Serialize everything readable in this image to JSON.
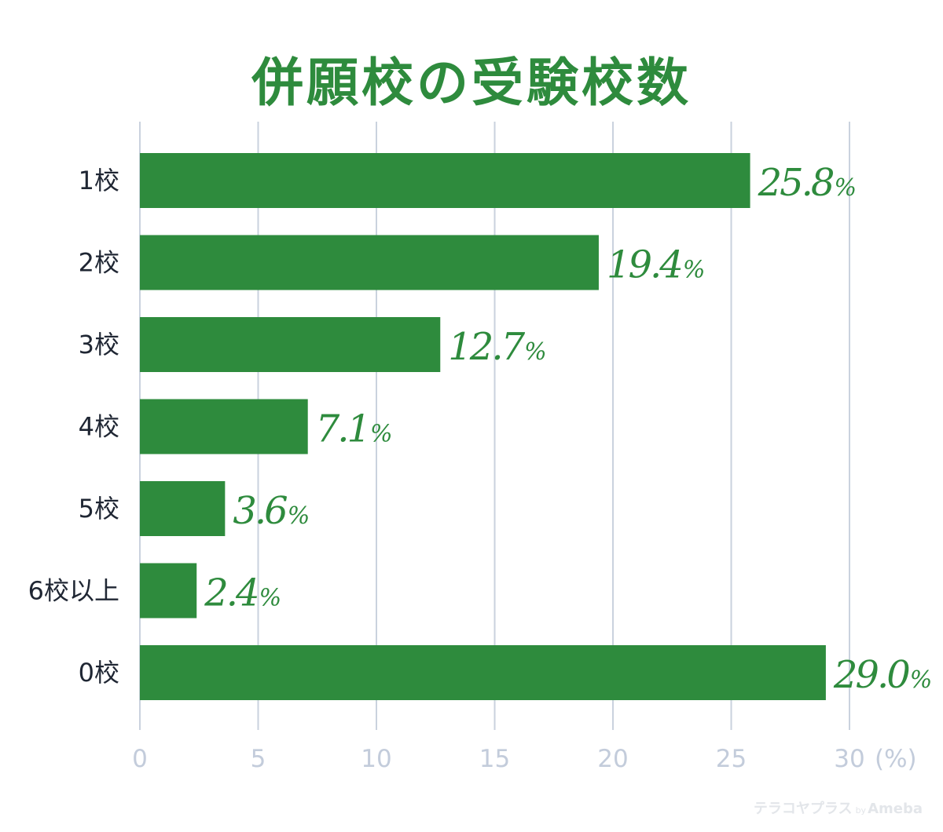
{
  "colors": {
    "title": "#2e8b3d",
    "bar": "#2e8b3d",
    "value_label": "#2e8b3d",
    "grid": "#cad2de",
    "tick": "#c3ccdb",
    "category_label": "#1f2633"
  },
  "watermark": {
    "brand": "テラコヤプラス",
    "by": "by",
    "company": "Ameba"
  },
  "chart_data": {
    "type": "bar",
    "orientation": "horizontal",
    "title": "併願校の受験校数",
    "categories": [
      "1校",
      "2校",
      "3校",
      "4校",
      "5校",
      "6校以上",
      "0校"
    ],
    "values": [
      25.8,
      19.4,
      12.7,
      7.1,
      3.6,
      2.4,
      29.0
    ],
    "value_labels": [
      "25.8",
      "19.4",
      "12.7",
      "7.1",
      "3.6",
      "2.4",
      "29.0"
    ],
    "value_suffix": "%",
    "xlim": [
      0,
      30
    ],
    "xticks": [
      "0",
      "5",
      "10",
      "15",
      "20",
      "25",
      "30"
    ],
    "xunit": "(%)",
    "grid": true
  }
}
